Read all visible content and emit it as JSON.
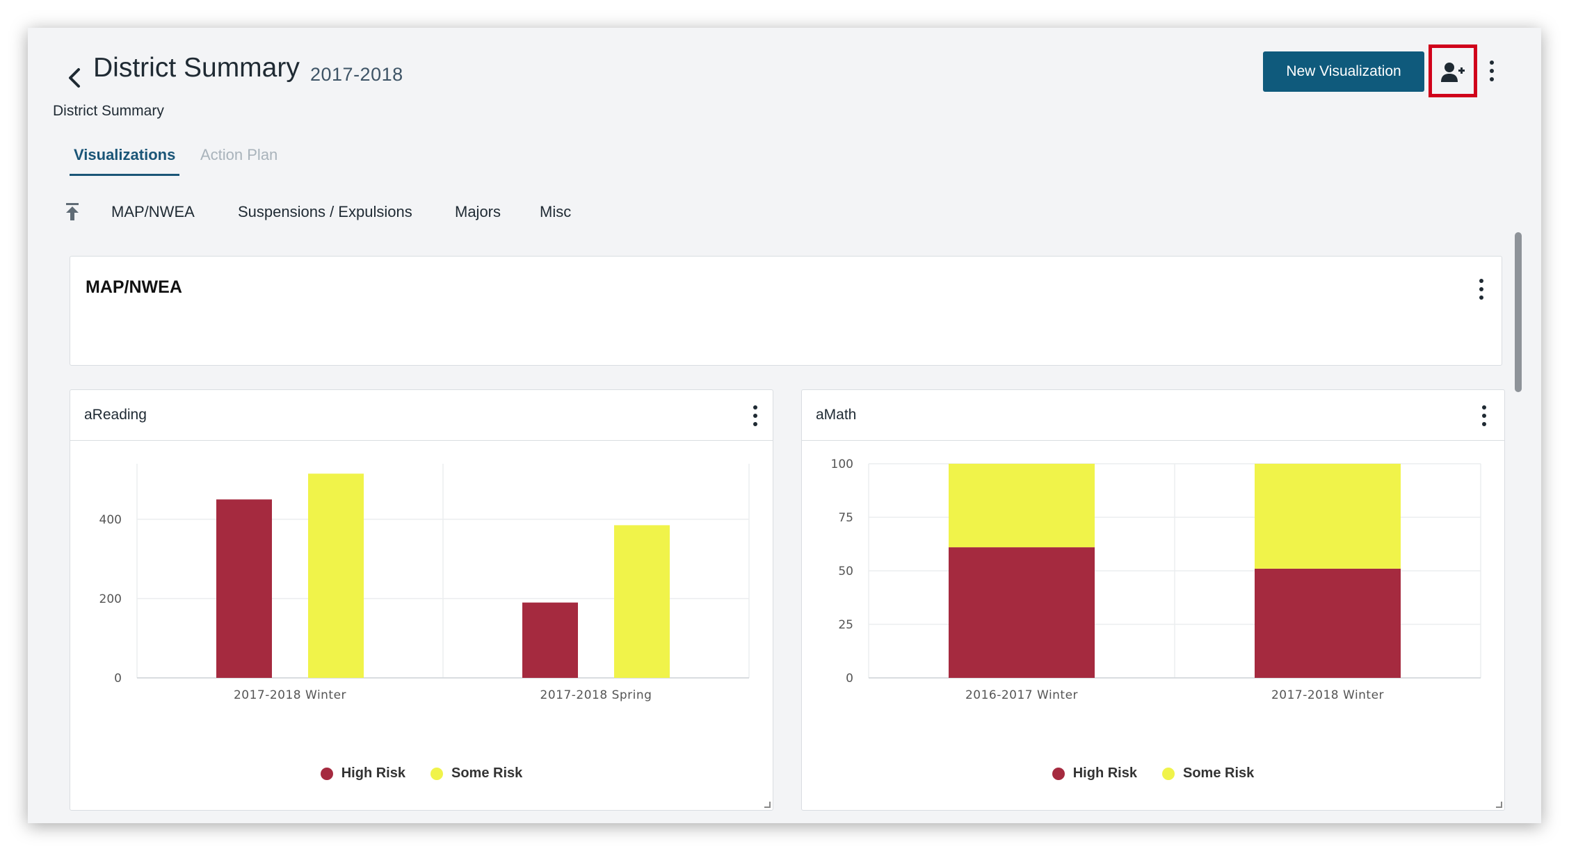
{
  "header": {
    "title": "District Summary",
    "year": "2017-2018",
    "subtitle": "District Summary",
    "new_visualization_label": "New Visualization"
  },
  "tabs": [
    {
      "label": "Visualizations",
      "active": true
    },
    {
      "label": "Action Plan",
      "active": false
    }
  ],
  "section_links": [
    "MAP/NWEA",
    "Suspensions / Expulsions",
    "Majors",
    "Misc"
  ],
  "section": {
    "title": "MAP/NWEA"
  },
  "icons": {
    "back": "chevron-left-icon",
    "share": "add-user-icon",
    "more": "more-vertical-icon",
    "anchor": "arrow-up-to-top-icon",
    "resize": "resize-corner-icon"
  },
  "colors": {
    "primary": "#0f5a7c",
    "highlight_border": "#d0021b",
    "high_risk": "#a52a3f",
    "some_risk": "#f0f34a"
  },
  "chart_data": [
    {
      "title": "aReading",
      "type": "bar",
      "categories": [
        "2017-2018 Winter",
        "2017-2018 Spring"
      ],
      "series": [
        {
          "name": "High Risk",
          "values": [
            450,
            190
          ]
        },
        {
          "name": "Some Risk",
          "values": [
            515,
            385
          ]
        }
      ],
      "ylim": [
        0,
        540
      ],
      "yticks": [
        0,
        200,
        400
      ],
      "grid": true,
      "legend": "bottom"
    },
    {
      "title": "aMath",
      "type": "bar",
      "stacked": true,
      "categories": [
        "2016-2017 Winter",
        "2017-2018 Winter"
      ],
      "series": [
        {
          "name": "High Risk",
          "values": [
            61,
            51
          ]
        },
        {
          "name": "Some Risk",
          "values": [
            39,
            49
          ]
        }
      ],
      "ylim": [
        0,
        100
      ],
      "yticks": [
        0,
        25,
        50,
        75,
        100
      ],
      "grid": true,
      "legend": "bottom"
    }
  ]
}
